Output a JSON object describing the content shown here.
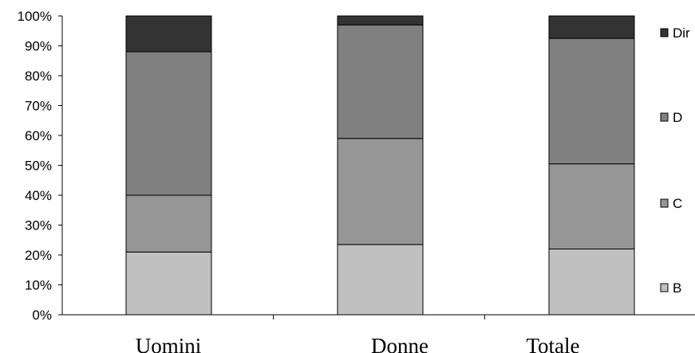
{
  "chart_data": {
    "type": "bar",
    "stacked": true,
    "normalized": true,
    "categories": [
      "Uomini",
      "Donne",
      "Totale"
    ],
    "series": [
      {
        "name": "B",
        "values": [
          21,
          23.5,
          22
        ],
        "color": "#c0c0c0"
      },
      {
        "name": "C",
        "values": [
          19,
          35.5,
          28.5
        ],
        "color": "#969696"
      },
      {
        "name": "D",
        "values": [
          48,
          38,
          42
        ],
        "color": "#808080"
      },
      {
        "name": "Dir",
        "values": [
          12,
          3,
          7.5
        ],
        "color": "#333333"
      }
    ],
    "yticks": [
      "0%",
      "10%",
      "20%",
      "30%",
      "40%",
      "50%",
      "60%",
      "70%",
      "80%",
      "90%",
      "100%"
    ],
    "ylim": [
      0,
      100
    ],
    "grid": false,
    "legend": {
      "placement": "right",
      "order": [
        "Dir",
        "D",
        "C",
        "B"
      ]
    },
    "title": "",
    "xlabel": "",
    "ylabel": ""
  }
}
